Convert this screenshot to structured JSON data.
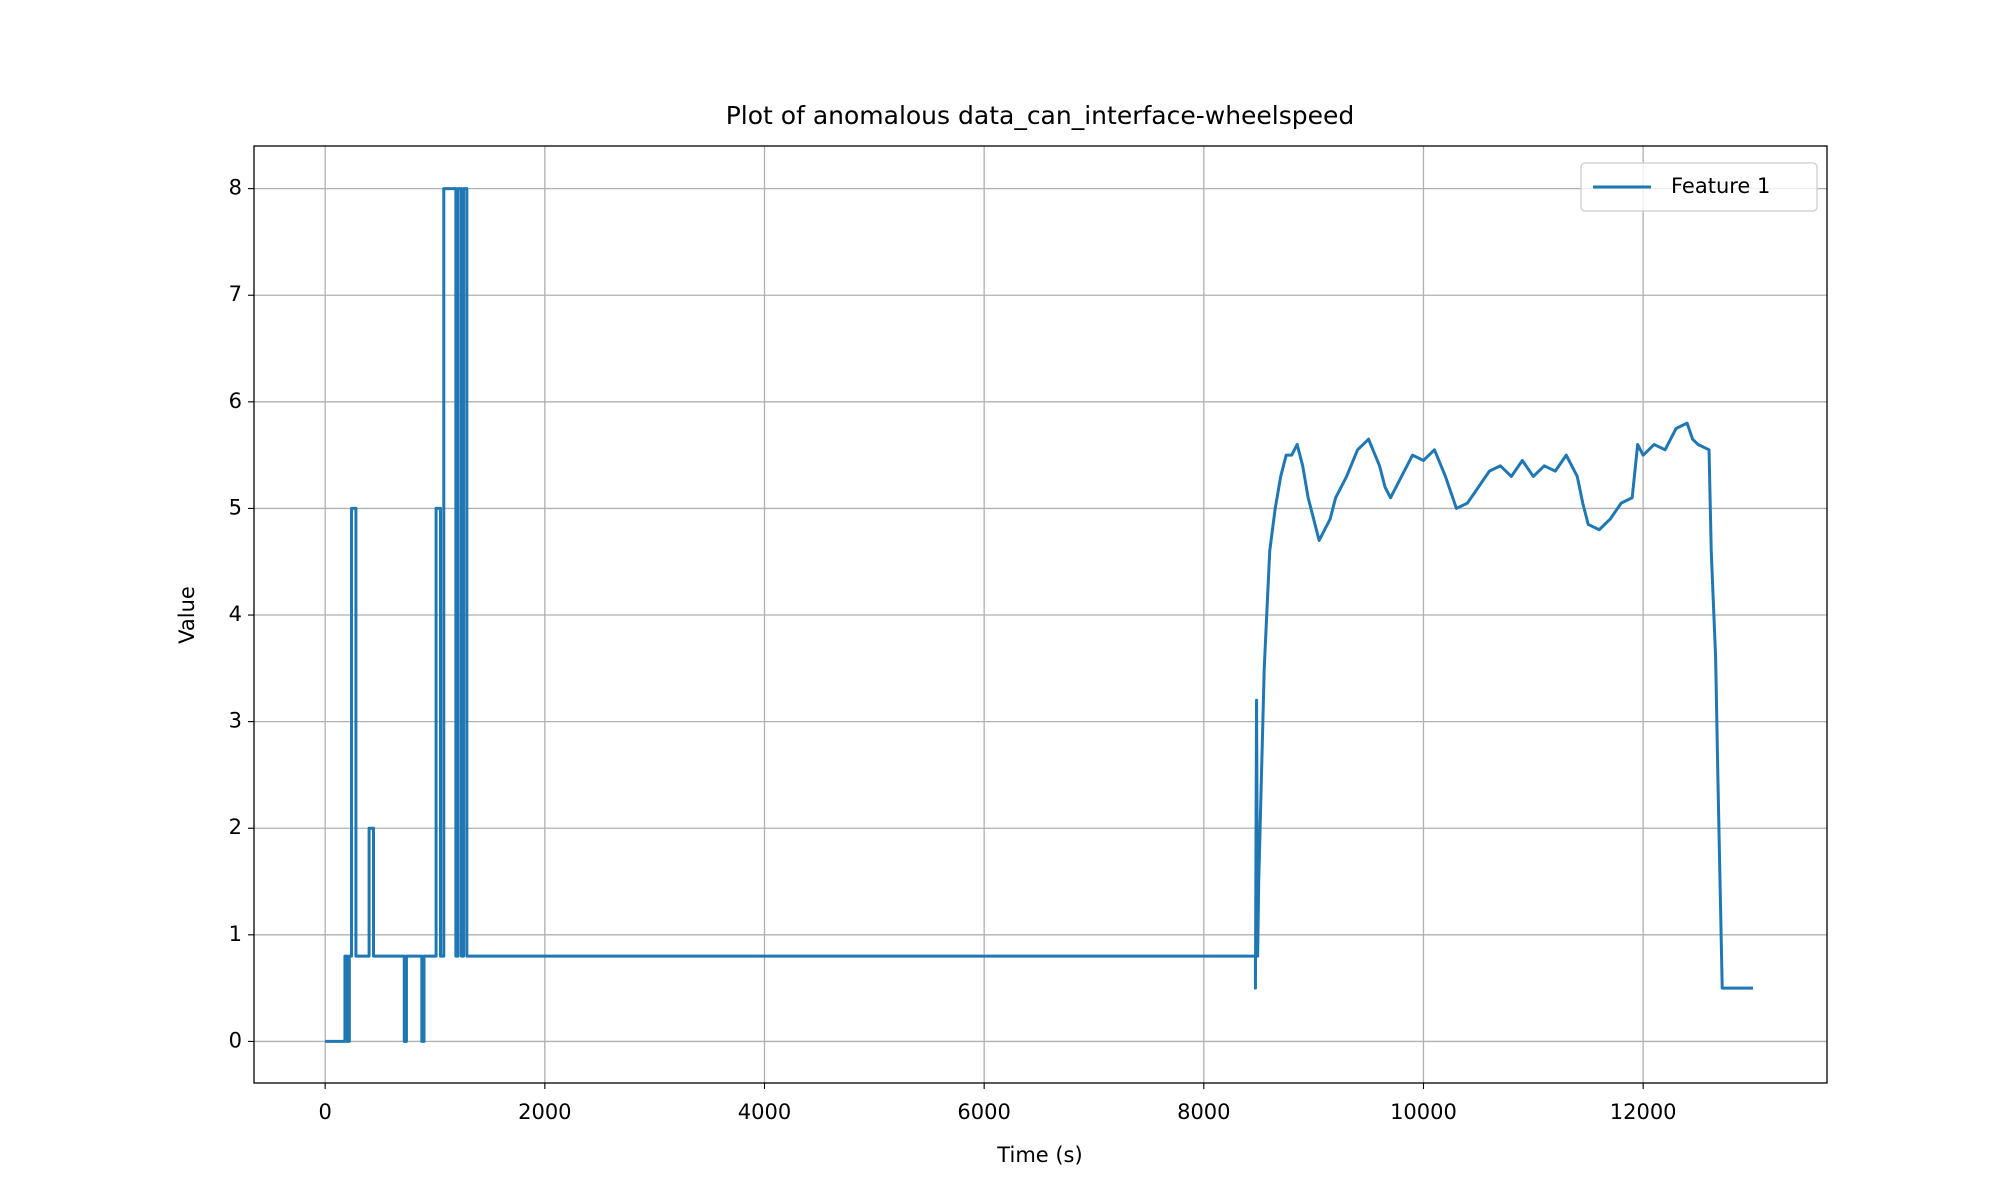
{
  "chart_data": {
    "type": "line",
    "title": "Plot of anomalous data_can_interface-wheelspeed",
    "xlabel": "Time (s)",
    "ylabel": "Value",
    "xlim": [
      -648,
      13674
    ],
    "ylim": [
      -0.39,
      8.4
    ],
    "xticks": [
      0,
      2000,
      4000,
      6000,
      8000,
      10000,
      12000
    ],
    "yticks": [
      0,
      1,
      2,
      3,
      4,
      5,
      6,
      7,
      8
    ],
    "grid": true,
    "legend": "upper right",
    "series": [
      {
        "name": "Feature 1",
        "color": "#1f77b4",
        "x": [
          0,
          180,
          180,
          200,
          200,
          220,
          220,
          240,
          240,
          280,
          280,
          400,
          400,
          440,
          440,
          720,
          720,
          740,
          740,
          880,
          880,
          900,
          900,
          1010,
          1010,
          1050,
          1050,
          1080,
          1080,
          1190,
          1190,
          1210,
          1210,
          1240,
          1240,
          1260,
          1260,
          1290,
          1290,
          8470,
          8470,
          8480,
          8490,
          8500,
          8550,
          8600,
          8650,
          8700,
          8750,
          8800,
          8850,
          8900,
          8950,
          9000,
          9050,
          9100,
          9150,
          9200,
          9300,
          9400,
          9500,
          9600,
          9650,
          9700,
          9800,
          9900,
          10000,
          10100,
          10200,
          10300,
          10400,
          10500,
          10600,
          10700,
          10800,
          10900,
          11000,
          11100,
          11200,
          11300,
          11400,
          11450,
          11500,
          11600,
          11700,
          11800,
          11900,
          11950,
          12000,
          12100,
          12200,
          12300,
          12400,
          12450,
          12500,
          12600,
          12620,
          12660,
          12680,
          12720,
          13000
        ],
        "values": [
          0,
          0,
          0.8,
          0.8,
          0,
          0,
          0.8,
          0.8,
          5,
          5,
          0.8,
          0.8,
          2,
          2,
          0.8,
          0.8,
          0,
          0,
          0.8,
          0.8,
          0,
          0,
          0.8,
          0.8,
          5,
          5,
          0.8,
          0.8,
          8,
          8,
          0.8,
          0.8,
          8,
          8,
          0.8,
          0.8,
          8,
          8,
          0.8,
          0.8,
          0.5,
          3.2,
          0.8,
          1.5,
          3.5,
          4.6,
          5.0,
          5.3,
          5.5,
          5.5,
          5.6,
          5.4,
          5.1,
          4.9,
          4.7,
          4.8,
          4.9,
          5.1,
          5.3,
          5.55,
          5.65,
          5.4,
          5.2,
          5.1,
          5.3,
          5.5,
          5.45,
          5.55,
          5.3,
          5.0,
          5.05,
          5.2,
          5.35,
          5.4,
          5.3,
          5.45,
          5.3,
          5.4,
          5.35,
          5.5,
          5.3,
          5.05,
          4.85,
          4.8,
          4.9,
          5.05,
          5.1,
          5.6,
          5.5,
          5.6,
          5.55,
          5.75,
          5.8,
          5.65,
          5.6,
          5.55,
          4.6,
          3.6,
          2.5,
          0.5,
          0.5
        ]
      }
    ]
  }
}
